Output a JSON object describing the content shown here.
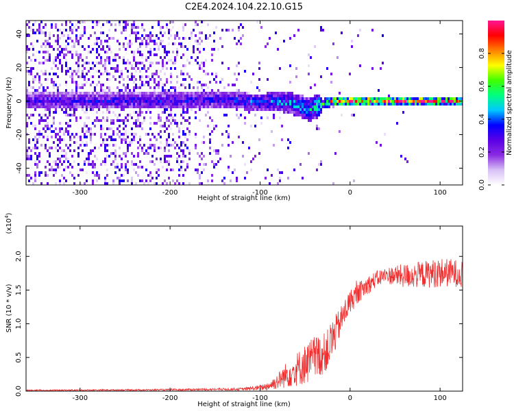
{
  "title": "C2E4.2024.104.22.10.G15",
  "chart_data": [
    {
      "type": "heatmap",
      "xlabel": "Height of straight line (km)",
      "ylabel": "Frequency (Hz)",
      "xlim": [
        -360,
        125
      ],
      "ylim": [
        -50,
        48
      ],
      "xticks": [
        -300,
        -200,
        -100,
        0,
        100
      ],
      "yticks": [
        -40,
        -20,
        0,
        20,
        40
      ],
      "colorbar": {
        "label": "Normalized spectral amplitude",
        "range": [
          0.0,
          1.0
        ],
        "ticks": [
          0.0,
          0.2,
          0.4,
          0.6,
          0.8
        ],
        "colormap": [
          "#ffffff",
          "#d8c0f6",
          "#8a2be2",
          "#5a00e6",
          "#0000ff",
          "#00c8ff",
          "#00ff80",
          "#40ff00",
          "#ffff00",
          "#ff8000",
          "#ff0000",
          "#ff1493"
        ]
      },
      "band_center_hz": [
        [
          -360,
          0
        ],
        [
          -300,
          0
        ],
        [
          -200,
          0
        ],
        [
          -150,
          1
        ],
        [
          -120,
          0
        ],
        [
          -100,
          -1
        ],
        [
          -80,
          0
        ],
        [
          -60,
          -2
        ],
        [
          -45,
          -5
        ],
        [
          -35,
          -3
        ],
        [
          -20,
          0
        ],
        [
          0,
          0
        ],
        [
          50,
          0
        ],
        [
          80,
          0
        ],
        [
          100,
          0
        ],
        [
          125,
          0
        ]
      ],
      "band_halfwidth_hz": [
        [
          -360,
          5
        ],
        [
          -100,
          5
        ],
        [
          -50,
          7
        ],
        [
          -35,
          7
        ],
        [
          -30,
          3
        ],
        [
          125,
          2
        ]
      ],
      "peak_amplitude": [
        [
          -360,
          0.3
        ],
        [
          -150,
          0.35
        ],
        [
          -100,
          0.4
        ],
        [
          -80,
          0.45
        ],
        [
          -50,
          0.45
        ],
        [
          -30,
          0.6
        ],
        [
          -20,
          0.8
        ],
        [
          0,
          0.9
        ],
        [
          60,
          0.95
        ],
        [
          125,
          0.95
        ]
      ],
      "background_noise": [
        [
          -360,
          0.22
        ],
        [
          -200,
          0.2
        ],
        [
          -170,
          0.12
        ],
        [
          -120,
          0.06
        ],
        [
          -110,
          0.02
        ],
        [
          125,
          0.0
        ]
      ]
    },
    {
      "type": "line",
      "xlabel": "Height of straight line (km)",
      "ylabel": "SNR (10 * v/v)",
      "y_scale_label": "(x10^4)",
      "xlim": [
        -360,
        125
      ],
      "ylim": [
        0,
        2.45
      ],
      "xticks": [
        -300,
        -200,
        -100,
        0,
        100
      ],
      "yticks": [
        0.0,
        0.5,
        1.0,
        1.5,
        2.0
      ],
      "color": "#f03030",
      "series": [
        {
          "x": [
            -360,
            -300,
            -200,
            -120,
            -100,
            -90,
            -80,
            -70,
            -60,
            -50,
            -40,
            -30,
            -25,
            -20,
            -15,
            -10,
            -5,
            0,
            10,
            20,
            30,
            40,
            60,
            80,
            100,
            125
          ],
          "y": [
            0.01,
            0.015,
            0.02,
            0.03,
            0.05,
            0.08,
            0.15,
            0.25,
            0.32,
            0.4,
            0.48,
            0.55,
            0.62,
            0.75,
            0.9,
            1.05,
            1.2,
            1.33,
            1.47,
            1.58,
            1.67,
            1.72,
            1.71,
            1.73,
            1.76,
            1.75
          ],
          "noise_amplitude": [
            0.01,
            0.01,
            0.012,
            0.02,
            0.04,
            0.07,
            0.12,
            0.2,
            0.25,
            0.3,
            0.35,
            0.3,
            0.3,
            0.35,
            0.25,
            0.22,
            0.2,
            0.18,
            0.15,
            0.14,
            0.12,
            0.12,
            0.18,
            0.2,
            0.22,
            0.2
          ]
        }
      ]
    }
  ]
}
